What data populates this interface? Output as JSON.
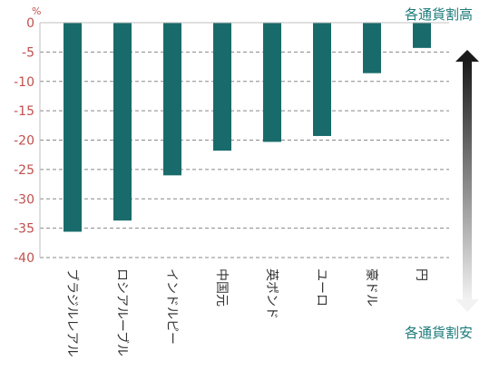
{
  "chart_data": {
    "type": "bar",
    "categories": [
      "ブラジルレアル",
      "ロシアルーブル",
      "インドルピー",
      "中国元",
      "英ポンド",
      "ユーロ",
      "豪ドル",
      "円"
    ],
    "values": [
      -35.6,
      -33.7,
      -26.0,
      -21.8,
      -20.3,
      -19.3,
      -8.6,
      -4.3
    ],
    "unit_label": "%",
    "y_ticks": [
      0,
      -5,
      -10,
      -15,
      -20,
      -25,
      -30,
      -35,
      -40
    ],
    "ylim": [
      -40,
      0
    ],
    "grid": true,
    "annotation_top": "各通貨割高",
    "annotation_bottom": "各通貨割安",
    "colors": {
      "bar": "#196b6b",
      "tick_text": "#c0504d",
      "annotation_text": "#1e7b7b",
      "grid": "#888888"
    }
  }
}
